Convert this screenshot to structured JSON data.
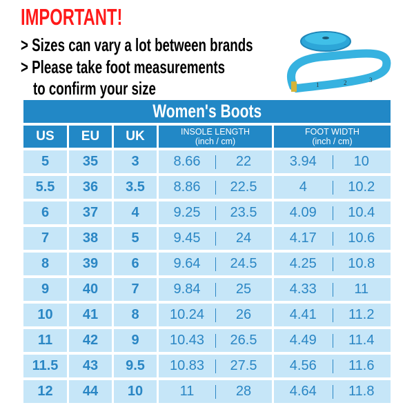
{
  "notice": {
    "heading": "IMPORTANT!",
    "lines": [
      "> Sizes can vary a lot between brands",
      "> Please take foot measurements",
      "to confirm your size"
    ]
  },
  "image": {
    "icon": "measuring-tape-icon"
  },
  "colors": {
    "header": "#2288c6",
    "row": "#c6e6f8",
    "text": "#2a86c4",
    "heading": "#ff1a1a"
  },
  "table": {
    "title": "Women's Boots",
    "headers": {
      "us": "US",
      "eu": "EU",
      "uk": "UK",
      "insole": "INSOLE LENGTH",
      "insole_unit": "(inch / cm)",
      "width": "FOOT WIDTH",
      "width_unit": "(inch / cm)"
    },
    "rows": [
      [
        "5",
        "35",
        "3",
        "8.66",
        "22",
        "3.94",
        "10"
      ],
      [
        "5.5",
        "36",
        "3.5",
        "8.86",
        "22.5",
        "4",
        "10.2"
      ],
      [
        "6",
        "37",
        "4",
        "9.25",
        "23.5",
        "4.09",
        "10.4"
      ],
      [
        "7",
        "38",
        "5",
        "9.45",
        "24",
        "4.17",
        "10.6"
      ],
      [
        "8",
        "39",
        "6",
        "9.64",
        "24.5",
        "4.25",
        "10.8"
      ],
      [
        "9",
        "40",
        "7",
        "9.84",
        "25",
        "4.33",
        "11"
      ],
      [
        "10",
        "41",
        "8",
        "10.24",
        "26",
        "4.41",
        "11.2"
      ],
      [
        "11",
        "42",
        "9",
        "10.43",
        "26.5",
        "4.49",
        "11.4"
      ],
      [
        "11.5",
        "43",
        "9.5",
        "10.83",
        "27.5",
        "4.56",
        "11.6"
      ],
      [
        "12",
        "44",
        "10",
        "11",
        "28",
        "4.64",
        "11.8"
      ]
    ]
  }
}
